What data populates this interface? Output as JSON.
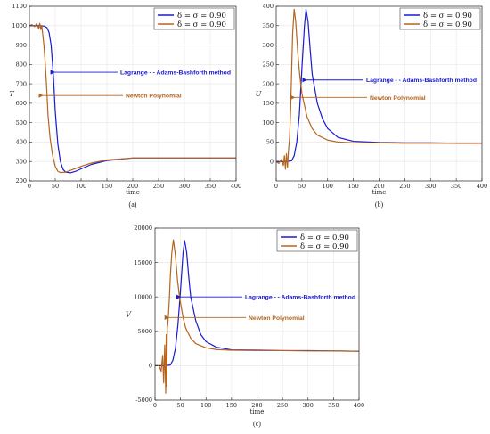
{
  "colors": {
    "series1": "#1a1ad0",
    "series2": "#b5651d",
    "axis": "#222222",
    "grid": "#e6e6e6"
  },
  "legend_entries": [
    "δ = σ = 0.90",
    "δ = σ = 0.90"
  ],
  "annotations": {
    "lagrange": "Lagrange - - Adams-Bashforth method",
    "newton": "Newton Polynomial"
  },
  "chart_data": [
    {
      "type": "line",
      "caption": "(a)",
      "xlabel": "time",
      "ylabel": "T",
      "xlim": [
        0,
        400
      ],
      "ylim": [
        200,
        1100
      ],
      "xticks": [
        0,
        50,
        100,
        150,
        200,
        250,
        300,
        350,
        400
      ],
      "yticks": [
        200,
        300,
        400,
        500,
        600,
        700,
        800,
        900,
        1000,
        1100
      ],
      "grid": true,
      "legend_position": "top-right",
      "series": [
        {
          "name": "δ = σ = 0.90",
          "color": "#1a1ad0",
          "x": [
            0,
            10,
            20,
            28,
            34,
            38,
            42,
            46,
            50,
            55,
            60,
            65,
            70,
            80,
            90,
            100,
            120,
            150,
            200,
            250,
            300,
            350,
            400
          ],
          "y": [
            1000,
            1000,
            1000,
            998,
            990,
            965,
            900,
            760,
            560,
            390,
            300,
            260,
            245,
            242,
            250,
            262,
            285,
            305,
            318,
            318,
            318,
            318,
            318
          ]
        },
        {
          "name": "δ = σ = 0.90",
          "color": "#b5651d",
          "x": [
            0,
            5,
            10,
            14,
            18,
            20,
            22,
            24,
            26,
            28,
            30,
            33,
            36,
            40,
            45,
            50,
            55,
            60,
            70,
            80,
            100,
            120,
            150,
            200,
            250,
            300,
            350,
            400
          ],
          "y": [
            1000,
            1005,
            995,
            1010,
            985,
            1012,
            980,
            1000,
            950,
            900,
            830,
            700,
            540,
            420,
            330,
            275,
            250,
            243,
            245,
            255,
            275,
            292,
            308,
            318,
            318,
            318,
            318,
            318
          ]
        }
      ]
    },
    {
      "type": "line",
      "caption": "(b)",
      "xlabel": "time",
      "ylabel": "U",
      "xlim": [
        0,
        400
      ],
      "ylim": [
        -50,
        400
      ],
      "xticks": [
        0,
        50,
        100,
        150,
        200,
        250,
        300,
        350,
        400
      ],
      "yticks": [
        0,
        50,
        100,
        150,
        200,
        250,
        300,
        350,
        400
      ],
      "grid": true,
      "legend_position": "top-right",
      "series": [
        {
          "name": "δ = σ = 0.90",
          "color": "#1a1ad0",
          "x": [
            0,
            10,
            20,
            30,
            35,
            40,
            45,
            50,
            55,
            58,
            62,
            66,
            70,
            80,
            90,
            100,
            120,
            150,
            200,
            250,
            300,
            350,
            400
          ],
          "y": [
            0,
            0,
            0,
            2,
            15,
            50,
            120,
            240,
            350,
            392,
            360,
            290,
            225,
            150,
            110,
            85,
            62,
            52,
            49,
            48,
            48,
            47,
            47
          ]
        },
        {
          "name": "δ = σ = 0.90",
          "color": "#b5651d",
          "x": [
            0,
            5,
            10,
            14,
            16,
            18,
            20,
            22,
            24,
            26,
            28,
            30,
            32,
            35,
            38,
            42,
            46,
            50,
            60,
            70,
            80,
            100,
            120,
            150,
            200,
            250,
            300,
            350,
            400
          ],
          "y": [
            0,
            -5,
            5,
            -10,
            15,
            -20,
            20,
            -15,
            30,
            60,
            130,
            230,
            330,
            392,
            360,
            280,
            220,
            175,
            115,
            85,
            68,
            55,
            50,
            48,
            48,
            47,
            47,
            47,
            47
          ]
        }
      ]
    },
    {
      "type": "line",
      "caption": "(c)",
      "xlabel": "time",
      "ylabel": "V",
      "xlim": [
        0,
        400
      ],
      "ylim": [
        -5000,
        20000
      ],
      "xticks": [
        0,
        50,
        100,
        150,
        200,
        250,
        300,
        350,
        400
      ],
      "yticks": [
        -5000,
        0,
        5000,
        10000,
        15000,
        20000
      ],
      "grid": true,
      "legend_position": "top-right",
      "series": [
        {
          "name": "δ = σ = 0.90",
          "color": "#1a1ad0",
          "x": [
            0,
            10,
            20,
            30,
            35,
            40,
            45,
            50,
            55,
            58,
            62,
            66,
            70,
            80,
            90,
            100,
            120,
            150,
            200,
            250,
            300,
            350,
            400
          ],
          "y": [
            0,
            0,
            0,
            100,
            800,
            2500,
            6000,
            11000,
            16500,
            18200,
            16500,
            13000,
            10000,
            6500,
            4500,
            3500,
            2700,
            2300,
            2250,
            2200,
            2200,
            2150,
            2100
          ]
        },
        {
          "name": "δ = σ = 0.90",
          "color": "#b5651d",
          "x": [
            0,
            8,
            12,
            15,
            17,
            19,
            21,
            22,
            23,
            24,
            25,
            26,
            28,
            30,
            33,
            36,
            40,
            44,
            48,
            55,
            60,
            70,
            80,
            100,
            120,
            150,
            200,
            250,
            300,
            350,
            400
          ],
          "y": [
            0,
            0,
            -800,
            1500,
            -2500,
            3000,
            -4000,
            4500,
            -3000,
            5500,
            6000,
            7000,
            9500,
            13000,
            16500,
            18300,
            16000,
            12500,
            10000,
            7000,
            5500,
            4000,
            3200,
            2600,
            2350,
            2250,
            2200,
            2200,
            2150,
            2150,
            2100
          ]
        }
      ]
    }
  ]
}
